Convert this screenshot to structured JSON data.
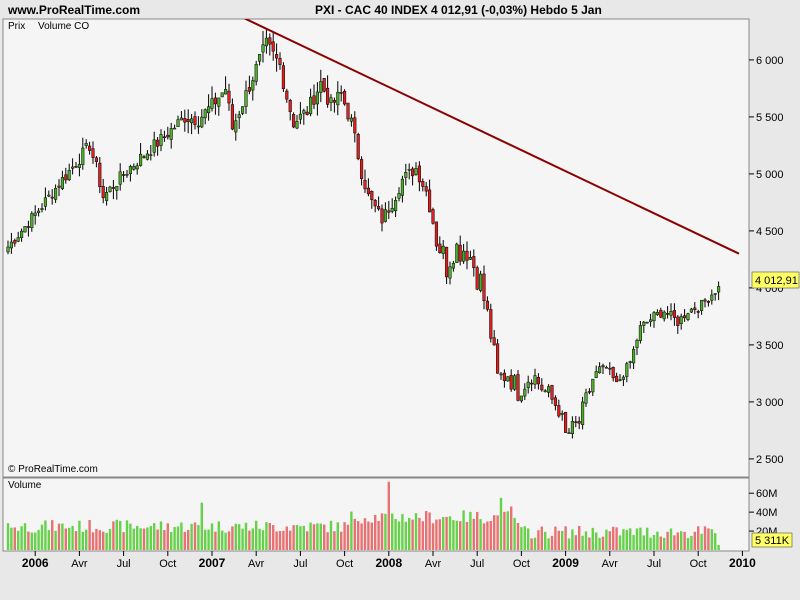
{
  "header": {
    "site": "www.ProRealTime.com",
    "title": "PXI - CAC 40 INDEX    4 012,91 (-0,03%)    Hebdo  5 Jan"
  },
  "price_panel": {
    "tab_prix": "Prix",
    "tab_volume": "Volume CO",
    "copyright": "© ProRealTime.com",
    "last_price_tag": "4 012,91"
  },
  "volume_panel": {
    "label": "Volume",
    "last_volume_tag": "5 311K"
  },
  "colors": {
    "up": "#4caf2a",
    "down": "#e02020",
    "vol_up": "#66d24a",
    "vol_down": "#e87272",
    "trendline": "#8b0000",
    "tag_bg": "#ffff66",
    "panel_bg": "#f5f5f5"
  },
  "chart_data": [
    {
      "type": "candlestick",
      "title": "PXI - CAC 40 INDEX",
      "timeframe": "Hebdo",
      "ylim": [
        2350,
        6350
      ],
      "yticks": [
        2500,
        3000,
        3500,
        4000,
        4500,
        5000,
        5500,
        6000
      ],
      "ytick_labels": [
        "2 500",
        "3 000",
        "3 500",
        "4 000",
        "4 500",
        "5 000",
        "5 500",
        "6 000"
      ],
      "x_labels": [
        "2006",
        "Avr",
        "Jul",
        "Oct",
        "2007",
        "Avr",
        "Jul",
        "Oct",
        "2008",
        "Avr",
        "Jul",
        "Oct",
        "2009",
        "Avr",
        "Jul",
        "Oct",
        "2010"
      ],
      "x_label_is_year": [
        true,
        false,
        false,
        false,
        true,
        false,
        false,
        false,
        true,
        false,
        false,
        false,
        true,
        false,
        false,
        false,
        true
      ],
      "close_anchors": [
        [
          0,
          4360
        ],
        [
          10,
          4720
        ],
        [
          16,
          4950
        ],
        [
          24,
          5250
        ],
        [
          26,
          5050
        ],
        [
          28,
          4800
        ],
        [
          36,
          5060
        ],
        [
          45,
          5300
        ],
        [
          52,
          5500
        ],
        [
          56,
          5480
        ],
        [
          60,
          5600
        ],
        [
          64,
          5750
        ],
        [
          66,
          5400
        ],
        [
          70,
          5700
        ],
        [
          74,
          6000
        ],
        [
          76,
          6130
        ],
        [
          80,
          5950
        ],
        [
          82,
          5680
        ],
        [
          84,
          5450
        ],
        [
          88,
          5550
        ],
        [
          92,
          5800
        ],
        [
          95,
          5600
        ],
        [
          98,
          5700
        ],
        [
          101,
          5450
        ],
        [
          104,
          5020
        ],
        [
          106,
          4800
        ],
        [
          110,
          4600
        ],
        [
          113,
          4750
        ],
        [
          116,
          4950
        ],
        [
          120,
          5050
        ],
        [
          123,
          4850
        ],
        [
          126,
          4450
        ],
        [
          129,
          4200
        ],
        [
          131,
          4350
        ],
        [
          135,
          4350
        ],
        [
          139,
          4050
        ],
        [
          142,
          3600
        ],
        [
          144,
          3200
        ],
        [
          147,
          3250
        ],
        [
          150,
          3100
        ],
        [
          154,
          3250
        ],
        [
          159,
          3050
        ],
        [
          162,
          2950
        ],
        [
          164,
          2700
        ],
        [
          168,
          2820
        ],
        [
          172,
          3200
        ],
        [
          176,
          3300
        ],
        [
          179,
          3150
        ],
        [
          183,
          3350
        ],
        [
          186,
          3650
        ],
        [
          190,
          3750
        ],
        [
          193,
          3800
        ],
        [
          197,
          3700
        ],
        [
          200,
          3800
        ],
        [
          204,
          3850
        ],
        [
          209,
          4013
        ]
      ],
      "trendline": {
        "points": [
          [
            60,
            6500
          ],
          [
            215,
            4300
          ]
        ]
      },
      "last_close": 4012.91
    },
    {
      "type": "bar",
      "title": "Volume",
      "ylim": [
        0,
        75
      ],
      "yticks": [
        20,
        40,
        60
      ],
      "ytick_labels": [
        "20M",
        "40M",
        "60M"
      ],
      "unit": "M",
      "last_value": 5.311
    }
  ]
}
